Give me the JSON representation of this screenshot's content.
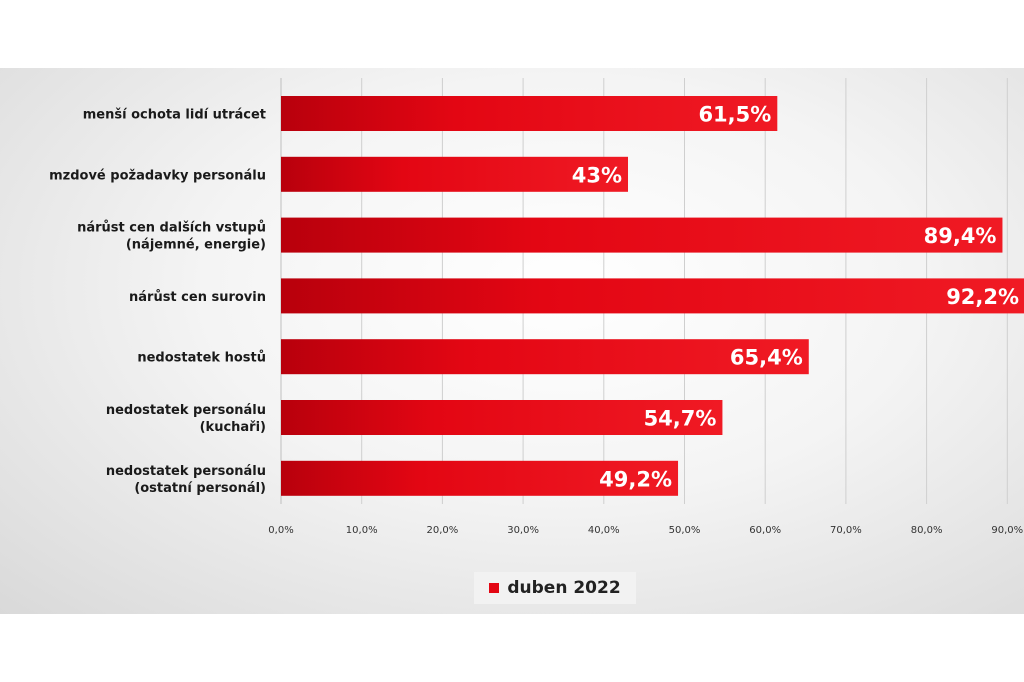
{
  "chart_data": {
    "type": "bar",
    "orientation": "horizontal",
    "categories": [
      [
        "menší ochota lidí utrácet"
      ],
      [
        "mzdové požadavky personálu"
      ],
      [
        "nárůst cen dalších vstupů",
        "(nájemné, energie)"
      ],
      [
        "nárůst cen surovin"
      ],
      [
        "nedostatek hostů"
      ],
      [
        "nedostatek personálu",
        "(kuchaři)"
      ],
      [
        "nedostatek personálu",
        "(ostatní personál)"
      ]
    ],
    "series": [
      {
        "name": "duben 2022",
        "values": [
          61.5,
          43,
          89.4,
          92.2,
          65.4,
          54.7,
          49.2
        ],
        "labels": [
          "61,5%",
          "43%",
          "89,4%",
          "92,2%",
          "65,4%",
          "54,7%",
          "49,2%"
        ]
      }
    ],
    "xticks": [
      "0,0%",
      "10,0%",
      "20,0%",
      "30,0%",
      "40,0%",
      "50,0%",
      "60,0%",
      "70,0%",
      "80,0%",
      "90,0%"
    ],
    "xlim": [
      0,
      90
    ],
    "grid": true,
    "legend_position": "bottom",
    "bar_color": "#e30613"
  }
}
